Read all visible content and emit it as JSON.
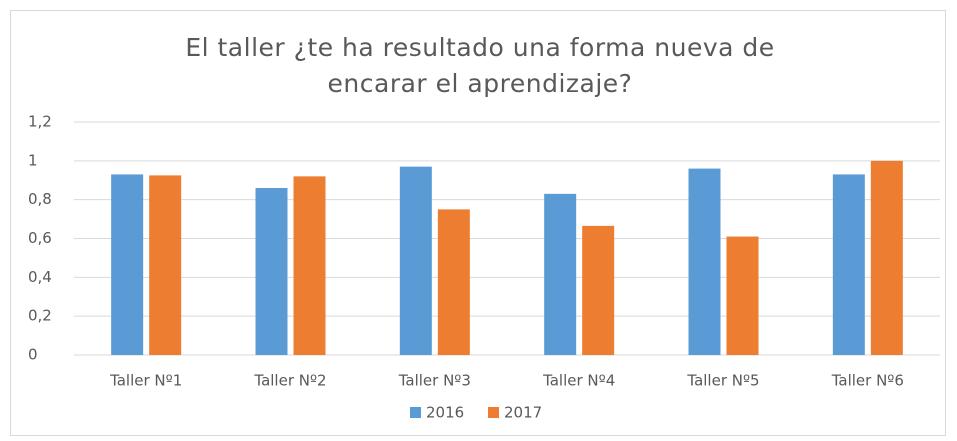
{
  "chart_data": {
    "type": "bar",
    "title": "El taller ¿te ha resultado una forma nueva de encarar el aprendizaje?",
    "categories": [
      "Taller Nº1",
      "Taller Nº2",
      "Taller Nº3",
      "Taller Nº4",
      "Taller Nº5",
      "Taller Nº6"
    ],
    "series": [
      {
        "name": "2016",
        "color": "#5b9bd5",
        "values": [
          0.93,
          0.86,
          0.97,
          0.83,
          0.96,
          0.93
        ]
      },
      {
        "name": "2017",
        "color": "#ed7d31",
        "values": [
          0.925,
          0.92,
          0.75,
          0.665,
          0.61,
          1.0
        ]
      }
    ],
    "ylim": [
      0,
      1.2
    ],
    "yticks": [
      0,
      {
        "value": 0.2,
        "label": "0,2"
      },
      {
        "value": 0.4,
        "label": "0,4"
      },
      {
        "value": 0.6,
        "label": "0,6"
      },
      {
        "value": 0.8,
        "label": "0,8"
      },
      1,
      {
        "value": 1.2,
        "label": "1,2"
      }
    ],
    "grid": true,
    "legend": "bottom"
  }
}
